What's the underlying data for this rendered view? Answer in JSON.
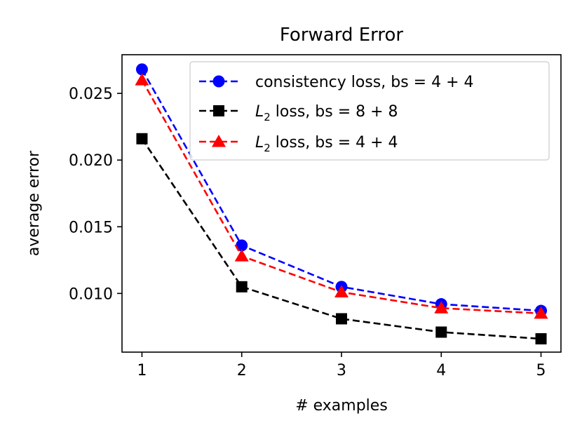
{
  "chart_data": {
    "type": "line",
    "title": "Forward Error",
    "xlabel": "# examples",
    "ylabel": "average error",
    "x": [
      1,
      2,
      3,
      4,
      5
    ],
    "xticks": [
      "1",
      "2",
      "3",
      "4",
      "5"
    ],
    "yticks": [
      "0.010",
      "0.015",
      "0.020",
      "0.025"
    ],
    "ytick_values": [
      0.01,
      0.015,
      0.02,
      0.025
    ],
    "xlim": [
      0.8,
      5.2
    ],
    "ylim": [
      0.0056,
      0.0279
    ],
    "grid": false,
    "legend_position": "top-right",
    "series": [
      {
        "name_main": "consistency loss, bs = 4 + 4",
        "values": [
          0.0268,
          0.0136,
          0.0105,
          0.0092,
          0.0087
        ],
        "color": "#0000ff",
        "marker": "circle",
        "linestyle": "dashed"
      },
      {
        "name_prefix": "L",
        "name_sub": "2",
        "name_main": " loss, bs = 8 + 8",
        "values": [
          0.0216,
          0.0105,
          0.0081,
          0.0071,
          0.0066
        ],
        "color": "#000000",
        "marker": "square",
        "linestyle": "dashed"
      },
      {
        "name_prefix": "L",
        "name_sub": "2",
        "name_main": " loss, bs = 4 + 4",
        "values": [
          0.026,
          0.0128,
          0.0101,
          0.0089,
          0.0085
        ],
        "color": "#ff0000",
        "marker": "triangle",
        "linestyle": "dashed"
      }
    ]
  }
}
